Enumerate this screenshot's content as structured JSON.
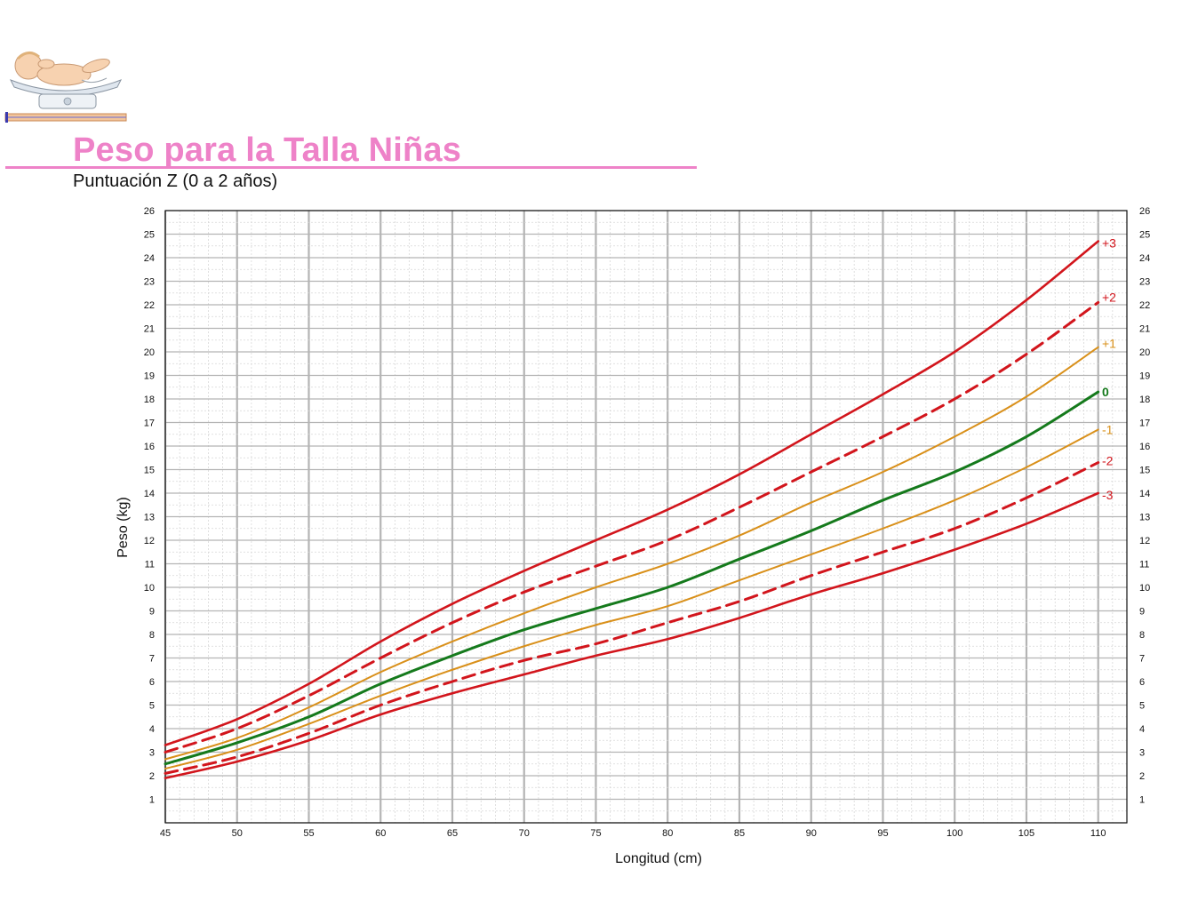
{
  "header": {
    "title": "Peso para la Talla Niñas",
    "subtitle": "Puntuación Z (0 a 2 años)"
  },
  "colors": {
    "title": "#ee82c8",
    "sd3": "#d2151c",
    "sd2": "#d2151c",
    "sd1": "#d9901a",
    "median": "#157a1c",
    "grid_major": "#b4b4b4",
    "grid_minor": "#d8d8d8"
  },
  "chart_data": {
    "type": "line",
    "title": "Peso para la Talla Niñas",
    "subtitle": "Puntuación Z (0 a 2 años)",
    "xlabel": "Longitud (cm)",
    "ylabel": "Peso (kg)",
    "xlim": [
      45,
      112
    ],
    "ylim": [
      0,
      26
    ],
    "x_ticks": [
      45,
      50,
      55,
      60,
      65,
      70,
      75,
      80,
      85,
      90,
      95,
      100,
      105,
      110
    ],
    "y_ticks": [
      1,
      2,
      3,
      4,
      5,
      6,
      7,
      8,
      9,
      10,
      11,
      12,
      13,
      14,
      15,
      16,
      17,
      18,
      19,
      20,
      21,
      22,
      23,
      24,
      25,
      26
    ],
    "x_minor_step": 1,
    "y_minor_step": 0.5,
    "grid": true,
    "x": [
      45,
      50,
      55,
      60,
      65,
      70,
      75,
      80,
      85,
      90,
      95,
      100,
      105,
      110
    ],
    "series": [
      {
        "name": "+3",
        "style": "solid",
        "color": "#d2151c",
        "values": [
          3.3,
          4.4,
          5.9,
          7.7,
          9.3,
          10.7,
          12.0,
          13.3,
          14.8,
          16.5,
          18.2,
          20.0,
          22.2,
          24.7
        ]
      },
      {
        "name": "+2",
        "style": "dashed",
        "color": "#d2151c",
        "values": [
          3.0,
          4.0,
          5.4,
          7.0,
          8.5,
          9.8,
          10.9,
          12.0,
          13.4,
          14.9,
          16.4,
          18.0,
          19.9,
          22.1
        ]
      },
      {
        "name": "+1",
        "style": "solid",
        "color": "#d9901a",
        "values": [
          2.7,
          3.6,
          4.9,
          6.4,
          7.7,
          8.9,
          10.0,
          11.0,
          12.2,
          13.6,
          14.9,
          16.4,
          18.1,
          20.2
        ]
      },
      {
        "name": "0",
        "style": "solid",
        "color": "#157a1c",
        "values": [
          2.5,
          3.4,
          4.5,
          5.9,
          7.1,
          8.2,
          9.1,
          10.0,
          11.2,
          12.4,
          13.7,
          14.9,
          16.4,
          18.3
        ]
      },
      {
        "name": "-1",
        "style": "solid",
        "color": "#d9901a",
        "values": [
          2.3,
          3.1,
          4.2,
          5.4,
          6.5,
          7.5,
          8.4,
          9.2,
          10.3,
          11.4,
          12.5,
          13.7,
          15.1,
          16.7
        ]
      },
      {
        "name": "-2",
        "style": "dashed",
        "color": "#d2151c",
        "values": [
          2.1,
          2.8,
          3.8,
          5.0,
          6.0,
          6.9,
          7.6,
          8.5,
          9.4,
          10.5,
          11.5,
          12.5,
          13.8,
          15.3
        ]
      },
      {
        "name": "-3",
        "style": "solid",
        "color": "#d2151c",
        "values": [
          1.9,
          2.6,
          3.5,
          4.6,
          5.5,
          6.3,
          7.1,
          7.8,
          8.7,
          9.7,
          10.6,
          11.6,
          12.7,
          14.0
        ]
      }
    ]
  }
}
